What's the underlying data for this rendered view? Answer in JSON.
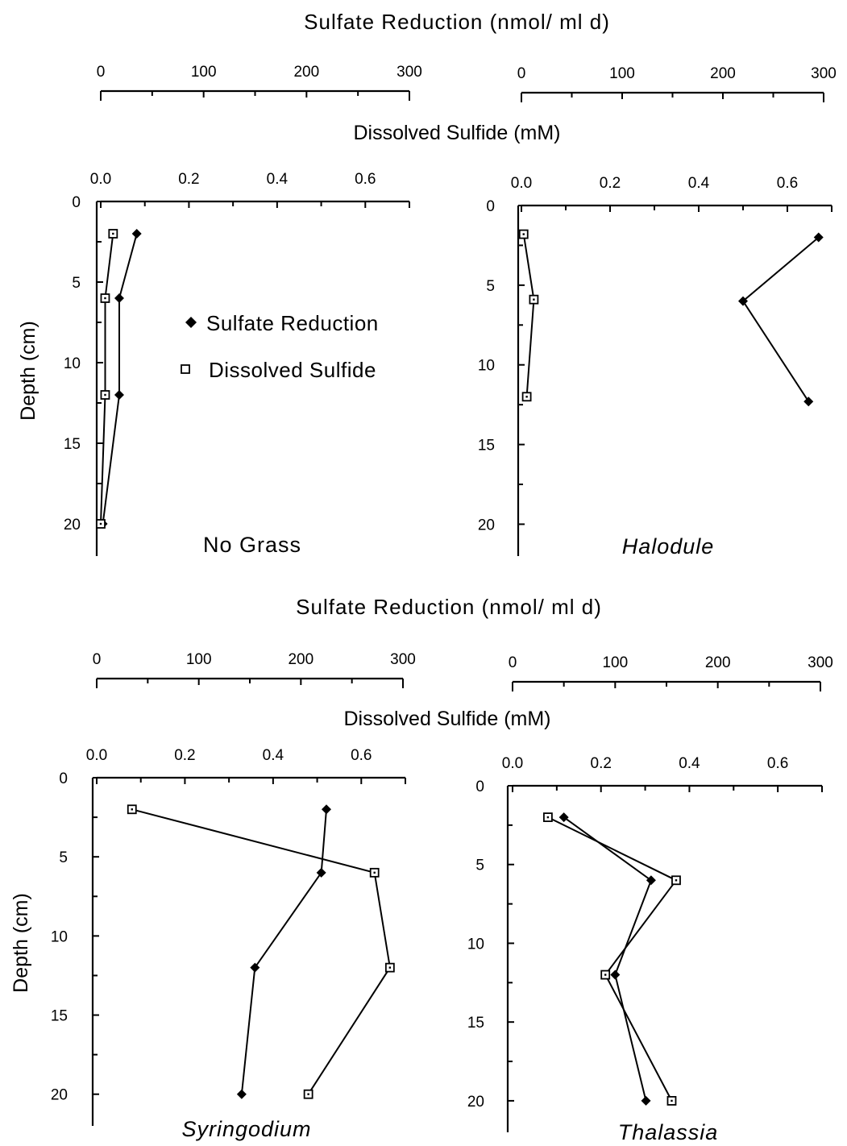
{
  "chart_data": [
    {
      "type": "line",
      "title": "No Grass",
      "title_italic": false,
      "header_sr": "Sulfate Reduction (nmol/ ml d)",
      "header_ds": "Dissolved Sulfide (mM)",
      "ylabel": "Depth (cm)",
      "sr_ticks": [
        "0",
        "100",
        "200",
        "300"
      ],
      "ds_ticks": [
        "0.0",
        "0.2",
        "0.4",
        "0.6"
      ],
      "y_ticks": [
        "0",
        "5",
        "10",
        "15",
        "20"
      ],
      "sr_range": [
        0,
        300
      ],
      "ds_range": [
        0,
        0.7
      ],
      "y_range": [
        0,
        22
      ],
      "legend": {
        "position": "inside-right",
        "entries": [
          "Sulfate Reduction",
          "Dissolved Sulfide"
        ]
      },
      "series": [
        {
          "name": "Sulfate Reduction",
          "marker": "filled-diamond",
          "axis": "sr",
          "points": [
            {
              "x": 35,
              "y": 2
            },
            {
              "x": 18,
              "y": 6
            },
            {
              "x": 18,
              "y": 12
            },
            {
              "x": 2,
              "y": 20
            }
          ]
        },
        {
          "name": "Dissolved Sulfide",
          "marker": "open-square",
          "axis": "ds",
          "points": [
            {
              "x": 0.028,
              "y": 2
            },
            {
              "x": 0.01,
              "y": 6
            },
            {
              "x": 0.01,
              "y": 12
            },
            {
              "x": 0.0,
              "y": 20
            }
          ]
        }
      ]
    },
    {
      "type": "line",
      "title": "Halodule",
      "title_italic": true,
      "header_sr": "",
      "header_ds": "",
      "ylabel": "",
      "sr_ticks": [
        "0",
        "100",
        "200",
        "300"
      ],
      "ds_ticks": [
        "0.0",
        "0.2",
        "0.4",
        "0.6"
      ],
      "y_ticks": [
        "0",
        "5",
        "10",
        "15",
        "20"
      ],
      "sr_range": [
        0,
        300
      ],
      "ds_range": [
        0,
        0.7
      ],
      "y_range": [
        0,
        22
      ],
      "series": [
        {
          "name": "Sulfate Reduction",
          "marker": "filled-diamond",
          "axis": "sr",
          "points": [
            {
              "x": 295,
              "y": 2
            },
            {
              "x": 220,
              "y": 6
            },
            {
              "x": 285,
              "y": 12.3
            }
          ]
        },
        {
          "name": "Dissolved Sulfide",
          "marker": "open-square",
          "axis": "ds",
          "points": [
            {
              "x": 0.005,
              "y": 1.8
            },
            {
              "x": 0.028,
              "y": 5.9
            },
            {
              "x": 0.012,
              "y": 12
            }
          ]
        }
      ]
    },
    {
      "type": "line",
      "title": "Syringodium",
      "title_italic": true,
      "header_sr": "Sulfate Reduction (nmol/ ml d)",
      "header_ds": "Dissolved Sulfide (mM)",
      "ylabel": "Depth (cm)",
      "sr_ticks": [
        "0",
        "100",
        "200",
        "300"
      ],
      "ds_ticks": [
        "0.0",
        "0.2",
        "0.4",
        "0.6"
      ],
      "y_ticks": [
        "0",
        "5",
        "10",
        "15",
        "20"
      ],
      "sr_range": [
        0,
        300
      ],
      "ds_range": [
        0,
        0.7
      ],
      "y_range": [
        0,
        22
      ],
      "series": [
        {
          "name": "Sulfate Reduction",
          "marker": "filled-diamond",
          "axis": "sr",
          "points": [
            {
              "x": 225,
              "y": 2
            },
            {
              "x": 220,
              "y": 6
            },
            {
              "x": 155,
              "y": 12
            },
            {
              "x": 142,
              "y": 20
            }
          ]
        },
        {
          "name": "Dissolved Sulfide",
          "marker": "open-square",
          "axis": "ds",
          "points": [
            {
              "x": 0.08,
              "y": 2
            },
            {
              "x": 0.63,
              "y": 6
            },
            {
              "x": 0.665,
              "y": 12
            },
            {
              "x": 0.48,
              "y": 20
            }
          ]
        }
      ]
    },
    {
      "type": "line",
      "title": "Thalassia",
      "title_italic": true,
      "header_sr": "",
      "header_ds": "",
      "ylabel": "",
      "sr_ticks": [
        "0",
        "100",
        "200",
        "300"
      ],
      "ds_ticks": [
        "0.0",
        "0.2",
        "0.4",
        "0.6"
      ],
      "y_ticks": [
        "0",
        "5",
        "10",
        "15",
        "20"
      ],
      "sr_range": [
        0,
        300
      ],
      "ds_range": [
        0,
        0.7
      ],
      "y_range": [
        0,
        22
      ],
      "series": [
        {
          "name": "Sulfate Reduction",
          "marker": "filled-diamond",
          "axis": "sr",
          "points": [
            {
              "x": 50,
              "y": 2
            },
            {
              "x": 135,
              "y": 6
            },
            {
              "x": 100,
              "y": 12
            },
            {
              "x": 130,
              "y": 20
            }
          ]
        },
        {
          "name": "Dissolved Sulfide",
          "marker": "open-square",
          "axis": "ds",
          "points": [
            {
              "x": 0.08,
              "y": 2
            },
            {
              "x": 0.37,
              "y": 6
            },
            {
              "x": 0.21,
              "y": 12
            },
            {
              "x": 0.36,
              "y": 20
            }
          ]
        }
      ]
    }
  ]
}
